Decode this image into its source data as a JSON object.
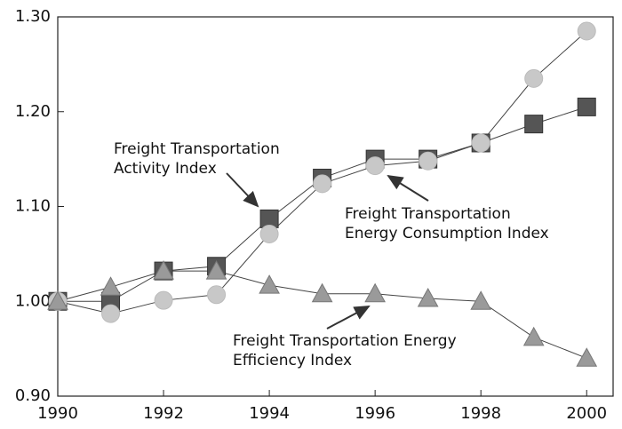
{
  "chart_data": {
    "type": "line",
    "x": [
      1990,
      1991,
      1992,
      1993,
      1994,
      1995,
      1996,
      1997,
      1998,
      1999,
      2000
    ],
    "series": [
      {
        "marker": "square",
        "color": "#555555",
        "values": [
          1.0,
          1.0,
          1.032,
          1.037,
          1.087,
          1.13,
          1.15,
          1.15,
          1.167,
          1.187,
          1.205
        ]
      },
      {
        "marker": "circle",
        "color": "#c8c8c8",
        "values": [
          1.0,
          0.987,
          1.001,
          1.007,
          1.071,
          1.124,
          1.143,
          1.148,
          1.167,
          1.235,
          1.285
        ]
      },
      {
        "marker": "triangle",
        "color": "#9a9a9a",
        "values": [
          1.0,
          1.015,
          1.032,
          1.032,
          1.017,
          1.008,
          1.008,
          1.003,
          1.0,
          0.962,
          0.94
        ]
      }
    ],
    "annotations": [
      {
        "lines": [
          "Freight Transportation",
          "Activity Index"
        ]
      },
      {
        "lines": [
          "Freight Transportation",
          "Energy Consumption Index"
        ]
      },
      {
        "lines": [
          "Freight Transportation Energy",
          "Efficiency Index"
        ]
      }
    ],
    "xlim": [
      1990,
      2000.5
    ],
    "xticks": [
      1990,
      1992,
      1994,
      1996,
      1998,
      2000
    ],
    "ylim": [
      0.9,
      1.3
    ],
    "yticks": [
      {
        "value": 0.9,
        "label": "0.90"
      },
      {
        "value": 1.0,
        "label": "1.00"
      },
      {
        "value": 1.1,
        "label": "1.10"
      },
      {
        "value": 1.2,
        "label": "1.20"
      },
      {
        "value": 1.3,
        "label": "1.30"
      }
    ]
  }
}
